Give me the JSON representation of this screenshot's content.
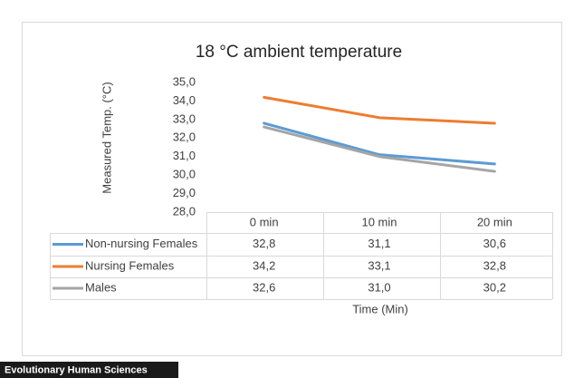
{
  "chart_data": {
    "type": "line",
    "title": "18 °C ambient temperature",
    "y_label": "Measured Temp. (°C)",
    "x_label": "Time (Min)",
    "categories": [
      "0 min",
      "10 min",
      "20 min"
    ],
    "series": [
      {
        "name": "Non-nursing Females",
        "color": "#5b9bd5",
        "values": [
          32.8,
          31.1,
          30.6
        ],
        "value_labels": [
          "32,8",
          "31,1",
          "30,6"
        ]
      },
      {
        "name": "Nursing Females",
        "color": "#ed7d31",
        "values": [
          34.2,
          33.1,
          32.8
        ],
        "value_labels": [
          "34,2",
          "33,1",
          "32,8"
        ]
      },
      {
        "name": "Males",
        "color": "#a5a5a5",
        "values": [
          32.6,
          31.0,
          30.2
        ],
        "value_labels": [
          "32,6",
          "31,0",
          "30,2"
        ]
      }
    ],
    "ylim": [
      28,
      35
    ],
    "yticks": [
      {
        "value": 28,
        "label": "28,0"
      },
      {
        "value": 29,
        "label": "29,0"
      },
      {
        "value": 30,
        "label": "30,0"
      },
      {
        "value": 31,
        "label": "31,0"
      },
      {
        "value": 32,
        "label": "32,0"
      },
      {
        "value": 33,
        "label": "33,0"
      },
      {
        "value": 34,
        "label": "34,0"
      },
      {
        "value": 35,
        "label": "35,0"
      }
    ]
  },
  "source": "Evolutionary Human Sciences"
}
